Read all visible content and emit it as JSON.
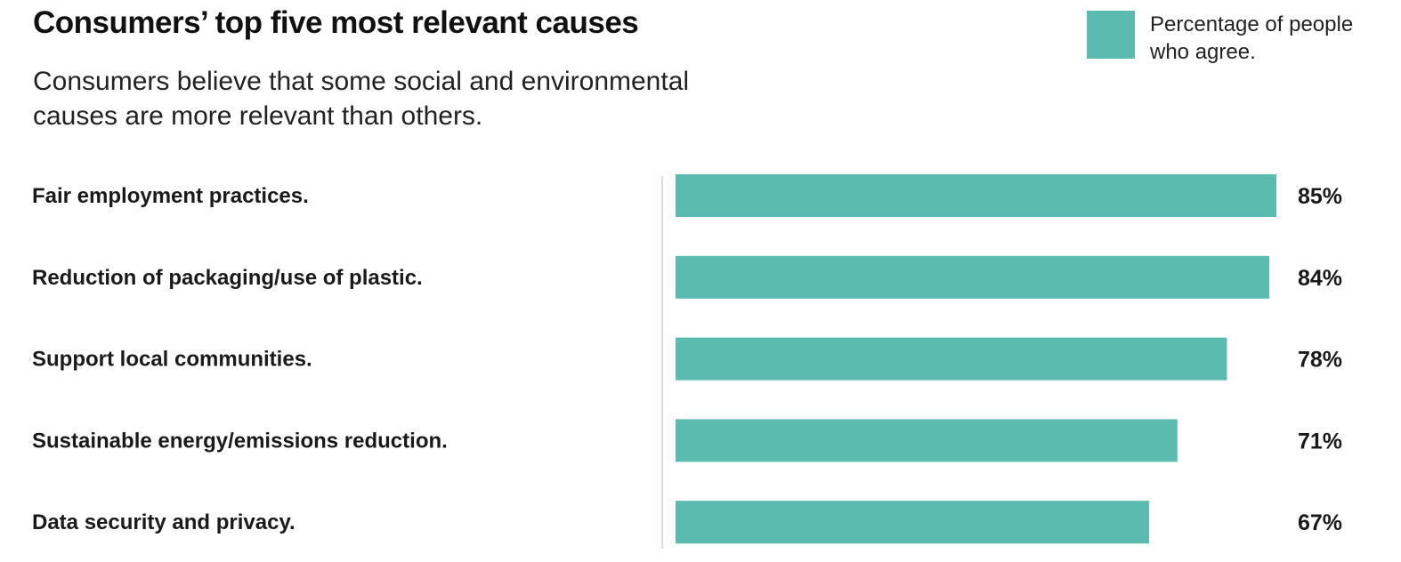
{
  "header": {
    "title": "Consumers’ top five most relevant causes",
    "subtitle": "Consumers believe that some social and environmental causes are more relevant than others."
  },
  "legend": {
    "label": "Percentage of people who agree.",
    "color": "#5bbbae"
  },
  "colors": {
    "bar": "#5bbbae",
    "axis": "#dddddd",
    "text": "#1a1a1a"
  },
  "chart_data": {
    "type": "bar",
    "orientation": "horizontal",
    "title": "Consumers’ top five most relevant causes",
    "subtitle": "Consumers believe that some social and environmental causes are more relevant than others.",
    "categories": [
      "Fair employment practices.",
      "Reduction of packaging/use of plastic.",
      "Support local communities.",
      "Sustainable energy/emissions reduction.",
      "Data security and privacy."
    ],
    "series": [
      {
        "name": "Percentage of people who agree.",
        "values": [
          85,
          84,
          78,
          71,
          67
        ]
      }
    ],
    "data_labels": [
      "85%",
      "84%",
      "78%",
      "71%",
      "67%"
    ],
    "xlim": [
      0,
      85
    ],
    "grid": false,
    "legend_position": "top-right"
  }
}
